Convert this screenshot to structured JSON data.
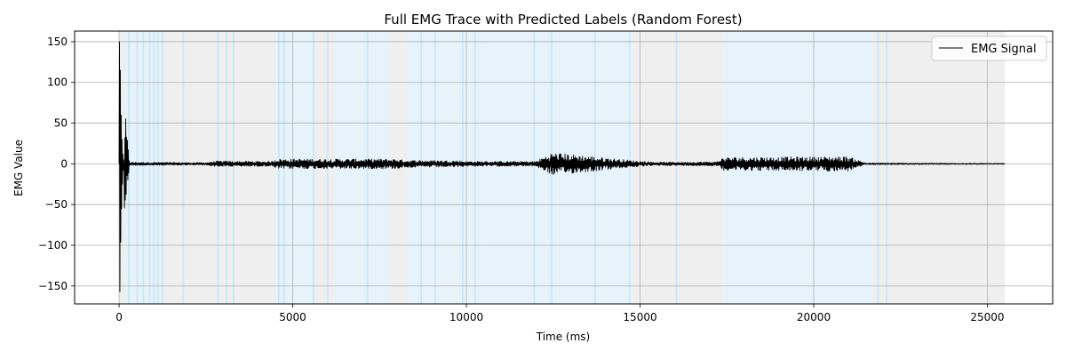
{
  "chart_data": {
    "type": "line",
    "title": "Full EMG Trace with Predicted Labels (Random Forest)",
    "xlabel": "Time (ms)",
    "ylabel": "EMG Value",
    "xlim": [
      -1280,
      26880
    ],
    "ylim": [
      -172,
      163
    ],
    "xticks": [
      0,
      5000,
      10000,
      15000,
      20000,
      25000
    ],
    "yticks": [
      -150,
      -100,
      -50,
      0,
      50,
      100,
      150
    ],
    "grid": true,
    "legend": {
      "position": "top-right",
      "entries": [
        "EMG Signal"
      ]
    },
    "series": [
      {
        "name": "EMG Signal",
        "color": "#000000",
        "x_range_ms": [
          0,
          25500
        ],
        "initial_spike": {
          "max": 150,
          "min": -157
        },
        "amplitude_envelope": [
          {
            "x": 0,
            "amp": 150
          },
          {
            "x": 300,
            "amp": 2
          },
          {
            "x": 2500,
            "amp": 1.5
          },
          {
            "x": 2800,
            "amp": 3.5
          },
          {
            "x": 4400,
            "amp": 3
          },
          {
            "x": 4500,
            "amp": 6
          },
          {
            "x": 8000,
            "amp": 6
          },
          {
            "x": 8200,
            "amp": 4.5
          },
          {
            "x": 9800,
            "amp": 4
          },
          {
            "x": 10000,
            "amp": 3
          },
          {
            "x": 12000,
            "amp": 3
          },
          {
            "x": 12200,
            "amp": 8
          },
          {
            "x": 12500,
            "amp": 14
          },
          {
            "x": 14800,
            "amp": 4
          },
          {
            "x": 15500,
            "amp": 2
          },
          {
            "x": 17200,
            "amp": 2.5
          },
          {
            "x": 17400,
            "amp": 8
          },
          {
            "x": 21000,
            "amp": 9
          },
          {
            "x": 21200,
            "amp": 6
          },
          {
            "x": 21500,
            "amp": 1
          },
          {
            "x": 25500,
            "amp": 0.5
          }
        ]
      }
    ],
    "label_regions": {
      "colors": {
        "rest": "#efefef",
        "active": "#e6f3fb",
        "separator": "#cfe7f5"
      },
      "segments": [
        {
          "start": 0,
          "end": 180,
          "label": "rest"
        },
        {
          "start": 180,
          "end": 1300,
          "label": "active"
        },
        {
          "start": 1300,
          "end": 4500,
          "label": "rest"
        },
        {
          "start": 4500,
          "end": 5600,
          "label": "active"
        },
        {
          "start": 5600,
          "end": 6200,
          "label": "rest"
        },
        {
          "start": 6200,
          "end": 7800,
          "label": "active"
        },
        {
          "start": 7800,
          "end": 8300,
          "label": "rest"
        },
        {
          "start": 8300,
          "end": 10400,
          "label": "active"
        },
        {
          "start": 10400,
          "end": 14800,
          "label": "active"
        },
        {
          "start": 14800,
          "end": 17400,
          "label": "rest"
        },
        {
          "start": 17400,
          "end": 21700,
          "label": "active"
        },
        {
          "start": 21700,
          "end": 25500,
          "label": "rest"
        }
      ],
      "separators": [
        280,
        520,
        700,
        880,
        1000,
        1120,
        1250,
        1850,
        2850,
        3100,
        3300,
        4600,
        4750,
        5600,
        6000,
        7150,
        8700,
        9100,
        9900,
        10250,
        11950,
        12450,
        13700,
        14700,
        16050,
        21850,
        22100
      ]
    }
  }
}
